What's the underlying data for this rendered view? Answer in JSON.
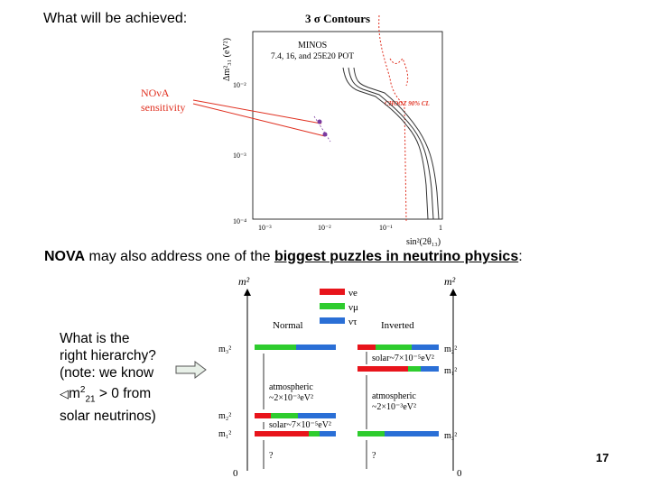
{
  "slide": {
    "heading": "What will be achieved:",
    "puzzle_prefix": "NOVA",
    "puzzle_middle": " may also address one of the ",
    "puzzle_link1": "biggest puzzles in neutrino physics",
    "puzzle_suffix": ":",
    "question_line1": "What is the",
    "question_line2": "right hierarchy?",
    "question_line3": "(note: we know",
    "question_line4_pre": "",
    "question_line4_m": "m",
    "question_line4_sup": "2",
    "question_line4_sub": "21",
    "question_line4_post": " > 0 from",
    "question_line5": "solar neutrinos)",
    "page_number": "17"
  },
  "contour_plot": {
    "title": "3 σ Contours",
    "minos_label_1": "MINOS",
    "minos_label_2": "7.4, 16, and 25E20 POT",
    "nova_label_1": "NOνA",
    "nova_label_2": "sensitivity",
    "chooz_label": "CHOOZ 90% CL",
    "y_axis_label": "Δm²₃₁ (eV²)",
    "x_axis_label": "sin²(2θ₁₃)",
    "y_ticks": [
      "10⁻²",
      "10⁻³",
      "10⁻⁴"
    ],
    "x_ticks": [
      "10⁻³",
      "10⁻²",
      "10⁻¹",
      "1"
    ],
    "colors": {
      "nova": "#e03020",
      "chooz": "#e03020",
      "minos": "#333333"
    }
  },
  "hierarchy_diagram": {
    "axis_label": "m²",
    "normal_label": "Normal",
    "inverted_label": "Inverted",
    "legend": [
      "νe",
      "νμ",
      "ντ"
    ],
    "legend_colors": [
      "#e8141b",
      "#2ecc2e",
      "#2a6fd6"
    ],
    "normal_levels": [
      "m₃²",
      "m₂²",
      "m₁²"
    ],
    "inverted_levels": [
      "m₂²",
      "m₁²",
      "m₃²"
    ],
    "atmospheric_1": "atmospheric",
    "atmospheric_2": "~2×10⁻³eV²",
    "solar": "solar~7×10⁻⁵eV²",
    "unknown": "?",
    "zero": "0"
  }
}
